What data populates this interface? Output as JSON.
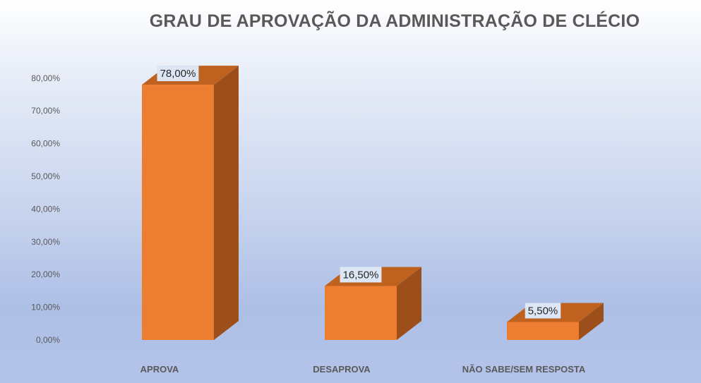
{
  "chart_data": {
    "type": "bar",
    "title": "GRAU DE APROVAÇÃO DA ADMINISTRAÇÃO DE CLÉCIO",
    "categories": [
      "APROVA",
      "DESAPROVA",
      "NÃO SABE/SEM RESPOSTA"
    ],
    "values": [
      78.0,
      16.5,
      5.5
    ],
    "data_labels": [
      "78,00%",
      "16,50%",
      "5,50%"
    ],
    "ylim": [
      0,
      80
    ],
    "yticks": [
      0,
      10,
      20,
      30,
      40,
      50,
      60,
      70,
      80
    ],
    "ytick_labels": [
      "0,00%",
      "10,00%",
      "20,00%",
      "30,00%",
      "40,00%",
      "50,00%",
      "60,00%",
      "70,00%",
      "80,00%"
    ],
    "xlabel": "",
    "ylabel": "",
    "grid": false,
    "legend": "none",
    "three_d": true,
    "colors": {
      "bar_front": "#ed7d31",
      "bar_side": "#9c4f1b",
      "bar_top": "#c0621f",
      "label_box": "#dde6f4",
      "text": "#595959"
    }
  }
}
